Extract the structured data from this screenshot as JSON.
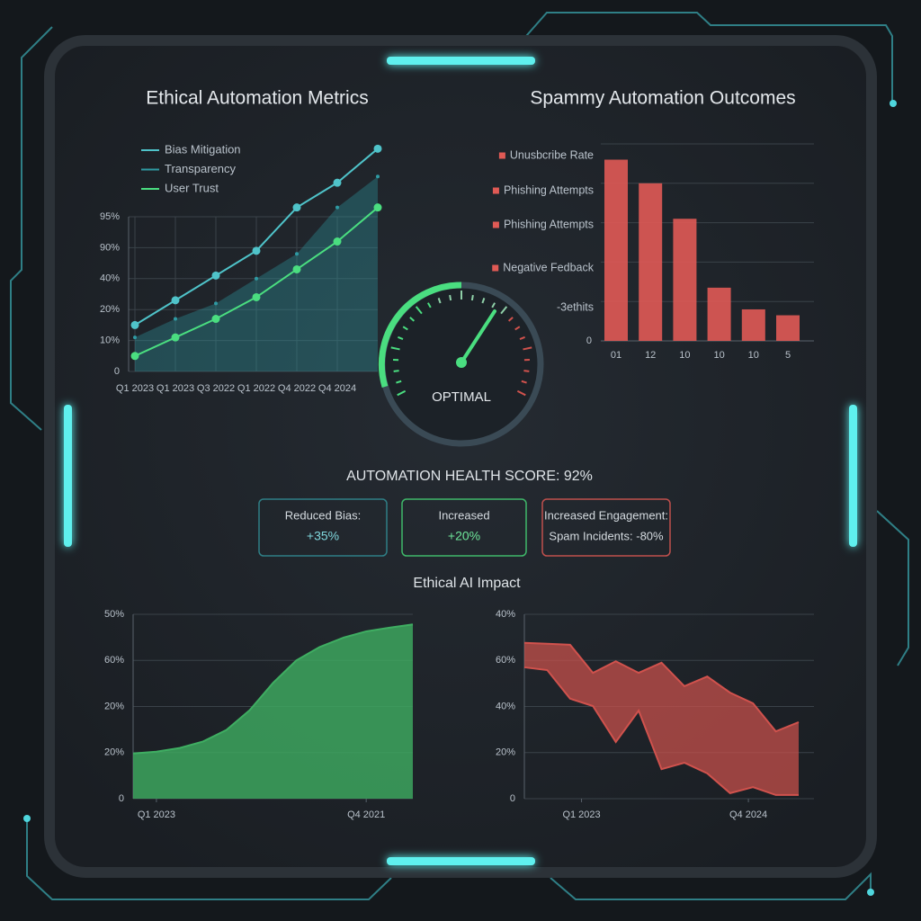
{
  "chart_data": [
    {
      "type": "line",
      "title": "Ethical Automation Metrics",
      "categories": [
        "Q1 2023",
        "Q1 2023",
        "Q3 2022",
        "Q1 2022",
        "Q4 2022",
        "Q4 2024",
        null
      ],
      "ycategories": [
        "0",
        "10%",
        "20%",
        "40%",
        "90%",
        "95%"
      ],
      "series": [
        {
          "name": "Bias Mitigation",
          "color": "#4fc3c9",
          "values": [
            1.5,
            2.3,
            3.1,
            3.9,
            5.3,
            6.1,
            7.2
          ]
        },
        {
          "name": "Transparency",
          "color": "#2f9aa3",
          "fill": true,
          "values": [
            1.1,
            1.7,
            2.2,
            3.0,
            3.8,
            5.3,
            6.3
          ]
        },
        {
          "name": "User Trust",
          "color": "#4ade80",
          "values": [
            0.5,
            1.1,
            1.7,
            2.4,
            3.3,
            4.2,
            5.3
          ]
        }
      ],
      "grid": true,
      "legend": "top-left"
    },
    {
      "type": "bar",
      "title": "Spammy Automation Outcomes",
      "categories": [
        "01",
        "12",
        "10",
        "10",
        "10",
        "5"
      ],
      "values": [
        92,
        80,
        62,
        27,
        16,
        13
      ],
      "color": "#e05a55",
      "ylim": [
        0,
        100
      ],
      "yticks": [
        0
      ],
      "annotations": [
        "Unusbcribe Rate",
        "Phishing Attempts",
        "Phishing Attempts",
        "Negative Fedback",
        "-3ethits"
      ],
      "grid": true
    },
    {
      "type": "area",
      "x": [
        0,
        1,
        2,
        3,
        4,
        5,
        6,
        7,
        8,
        9,
        10,
        11,
        12
      ],
      "xlim": [
        0,
        12
      ],
      "xticks": [
        {
          "value": 1,
          "label": "Q1 2023"
        },
        {
          "value": 10,
          "label": "Q4 2021"
        }
      ],
      "ycategories": [
        "0",
        "20%",
        "20%",
        "60%",
        "50%"
      ],
      "series": [
        {
          "color": "#3fae62",
          "values": [
            0.98,
            1.02,
            1.1,
            1.24,
            1.49,
            1.92,
            2.51,
            3.0,
            3.29,
            3.49,
            3.63,
            3.71,
            3.78
          ]
        }
      ],
      "grid": true
    },
    {
      "type": "area",
      "x": [
        0,
        1,
        2,
        3,
        4,
        5,
        6,
        7,
        8,
        9,
        10,
        11,
        12
      ],
      "xlim": [
        0,
        12
      ],
      "xticks": [
        {
          "value": 2.5,
          "label": "Q1 2023"
        },
        {
          "value": 9.8,
          "label": "Q4 2024"
        }
      ],
      "ycategories": [
        "0",
        "20%",
        "40%",
        "60%",
        "40%"
      ],
      "series": [
        {
          "color": "#d0524d",
          "values": [
            3.38,
            3.36,
            3.34,
            2.73,
            2.98,
            2.73,
            2.95,
            2.44,
            2.65,
            2.3,
            2.07,
            1.46,
            1.66
          ]
        },
        {
          "color": "#d0524d",
          "values": [
            2.85,
            2.79,
            2.17,
            2.01,
            1.23,
            1.91,
            0.64,
            0.78,
            0.55,
            0.12,
            0.25,
            0.08,
            0.08
          ]
        }
      ],
      "band": true,
      "grid": true
    }
  ],
  "gauge": {
    "label": "OPTIMAL"
  },
  "health_score": "AUTOMATION HEALTH SCORE: 92%",
  "cards": [
    {
      "title": "Reduced Bias:",
      "value": "+35%"
    },
    {
      "title": "Increased",
      "value": "+20%"
    },
    {
      "title": "Increased Engagement:",
      "value": "Spam Incidents: -80%"
    }
  ],
  "section_title": "Ethical AI Impact"
}
